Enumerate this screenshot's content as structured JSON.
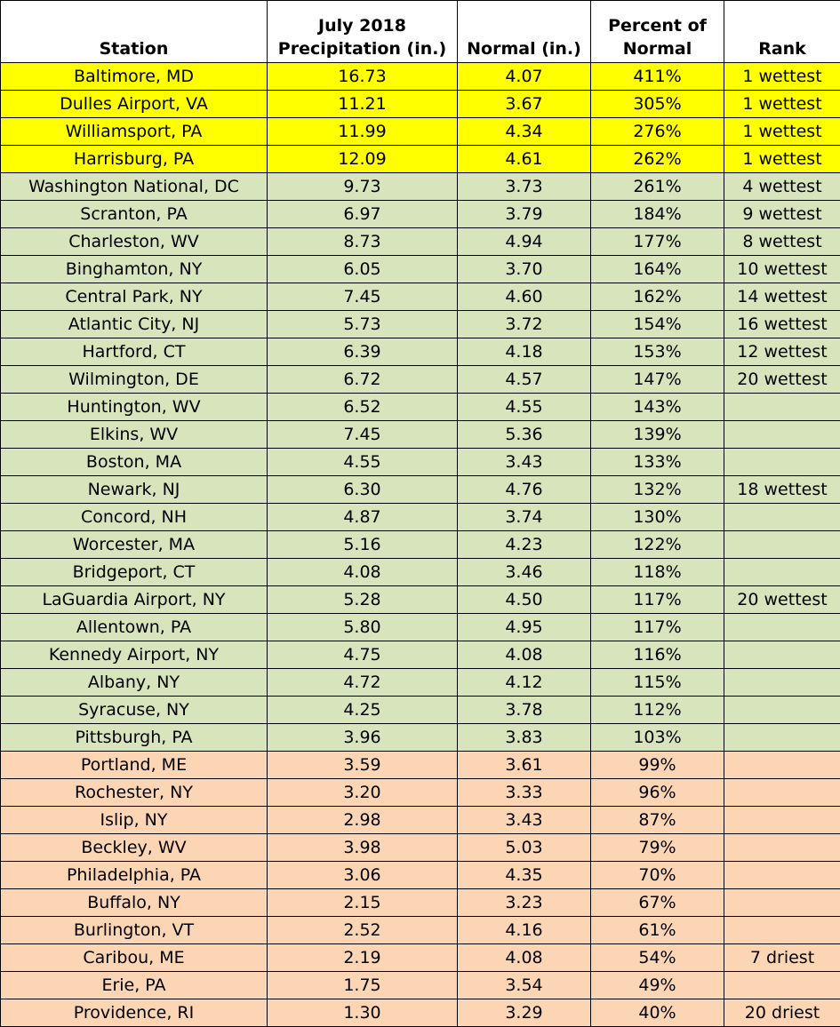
{
  "headers": {
    "station": "Station",
    "precip_line1": "July 2018",
    "precip_line2": "Precipitation (in.)",
    "normal": "Normal (in.)",
    "percent_line1": "Percent of",
    "percent_line2": "Normal",
    "rank": "Rank"
  },
  "colors": {
    "record": "#ffff00",
    "above_normal": "#d8e4bc",
    "below_normal": "#fcd5b4"
  },
  "rows": [
    {
      "station": "Baltimore, MD",
      "precip": "16.73",
      "normal": "4.07",
      "percent": "411%",
      "rank": "1 wettest",
      "group": "record"
    },
    {
      "station": "Dulles Airport, VA",
      "precip": "11.21",
      "normal": "3.67",
      "percent": "305%",
      "rank": "1 wettest",
      "group": "record"
    },
    {
      "station": "Williamsport, PA",
      "precip": "11.99",
      "normal": "4.34",
      "percent": "276%",
      "rank": "1 wettest",
      "group": "record"
    },
    {
      "station": "Harrisburg, PA",
      "precip": "12.09",
      "normal": "4.61",
      "percent": "262%",
      "rank": "1 wettest",
      "group": "record"
    },
    {
      "station": "Washington National, DC",
      "precip": "9.73",
      "normal": "3.73",
      "percent": "261%",
      "rank": "4 wettest",
      "group": "above"
    },
    {
      "station": "Scranton, PA",
      "precip": "6.97",
      "normal": "3.79",
      "percent": "184%",
      "rank": "9 wettest",
      "group": "above"
    },
    {
      "station": "Charleston, WV",
      "precip": "8.73",
      "normal": "4.94",
      "percent": "177%",
      "rank": "8 wettest",
      "group": "above"
    },
    {
      "station": "Binghamton, NY",
      "precip": "6.05",
      "normal": "3.70",
      "percent": "164%",
      "rank": "10 wettest",
      "group": "above"
    },
    {
      "station": "Central Park, NY",
      "precip": "7.45",
      "normal": "4.60",
      "percent": "162%",
      "rank": "14 wettest",
      "group": "above"
    },
    {
      "station": "Atlantic City, NJ",
      "precip": "5.73",
      "normal": "3.72",
      "percent": "154%",
      "rank": "16 wettest",
      "group": "above"
    },
    {
      "station": "Hartford, CT",
      "precip": "6.39",
      "normal": "4.18",
      "percent": "153%",
      "rank": "12 wettest",
      "group": "above"
    },
    {
      "station": "Wilmington, DE",
      "precip": "6.72",
      "normal": "4.57",
      "percent": "147%",
      "rank": "20 wettest",
      "group": "above"
    },
    {
      "station": "Huntington, WV",
      "precip": "6.52",
      "normal": "4.55",
      "percent": "143%",
      "rank": "",
      "group": "above"
    },
    {
      "station": "Elkins, WV",
      "precip": "7.45",
      "normal": "5.36",
      "percent": "139%",
      "rank": "",
      "group": "above"
    },
    {
      "station": "Boston, MA",
      "precip": "4.55",
      "normal": "3.43",
      "percent": "133%",
      "rank": "",
      "group": "above"
    },
    {
      "station": "Newark, NJ",
      "precip": "6.30",
      "normal": "4.76",
      "percent": "132%",
      "rank": "18 wettest",
      "group": "above"
    },
    {
      "station": "Concord, NH",
      "precip": "4.87",
      "normal": "3.74",
      "percent": "130%",
      "rank": "",
      "group": "above"
    },
    {
      "station": "Worcester, MA",
      "precip": "5.16",
      "normal": "4.23",
      "percent": "122%",
      "rank": "",
      "group": "above"
    },
    {
      "station": "Bridgeport, CT",
      "precip": "4.08",
      "normal": "3.46",
      "percent": "118%",
      "rank": "",
      "group": "above"
    },
    {
      "station": "LaGuardia Airport, NY",
      "precip": "5.28",
      "normal": "4.50",
      "percent": "117%",
      "rank": "20 wettest",
      "group": "above"
    },
    {
      "station": "Allentown, PA",
      "precip": "5.80",
      "normal": "4.95",
      "percent": "117%",
      "rank": "",
      "group": "above"
    },
    {
      "station": "Kennedy Airport, NY",
      "precip": "4.75",
      "normal": "4.08",
      "percent": "116%",
      "rank": "",
      "group": "above"
    },
    {
      "station": "Albany, NY",
      "precip": "4.72",
      "normal": "4.12",
      "percent": "115%",
      "rank": "",
      "group": "above"
    },
    {
      "station": "Syracuse, NY",
      "precip": "4.25",
      "normal": "3.78",
      "percent": "112%",
      "rank": "",
      "group": "above"
    },
    {
      "station": "Pittsburgh, PA",
      "precip": "3.96",
      "normal": "3.83",
      "percent": "103%",
      "rank": "",
      "group": "above"
    },
    {
      "station": "Portland, ME",
      "precip": "3.59",
      "normal": "3.61",
      "percent": "99%",
      "rank": "",
      "group": "below"
    },
    {
      "station": "Rochester, NY",
      "precip": "3.20",
      "normal": "3.33",
      "percent": "96%",
      "rank": "",
      "group": "below"
    },
    {
      "station": "Islip, NY",
      "precip": "2.98",
      "normal": "3.43",
      "percent": "87%",
      "rank": "",
      "group": "below"
    },
    {
      "station": "Beckley, WV",
      "precip": "3.98",
      "normal": "5.03",
      "percent": "79%",
      "rank": "",
      "group": "below"
    },
    {
      "station": "Philadelphia, PA",
      "precip": "3.06",
      "normal": "4.35",
      "percent": "70%",
      "rank": "",
      "group": "below"
    },
    {
      "station": "Buffalo, NY",
      "precip": "2.15",
      "normal": "3.23",
      "percent": "67%",
      "rank": "",
      "group": "below"
    },
    {
      "station": "Burlington, VT",
      "precip": "2.52",
      "normal": "4.16",
      "percent": "61%",
      "rank": "",
      "group": "below"
    },
    {
      "station": "Caribou, ME",
      "precip": "2.19",
      "normal": "4.08",
      "percent": "54%",
      "rank": "7 driest",
      "group": "below"
    },
    {
      "station": "Erie, PA",
      "precip": "1.75",
      "normal": "3.54",
      "percent": "49%",
      "rank": "",
      "group": "below"
    },
    {
      "station": "Providence, RI",
      "precip": "1.30",
      "normal": "3.29",
      "percent": "40%",
      "rank": "20 driest",
      "group": "below"
    }
  ]
}
